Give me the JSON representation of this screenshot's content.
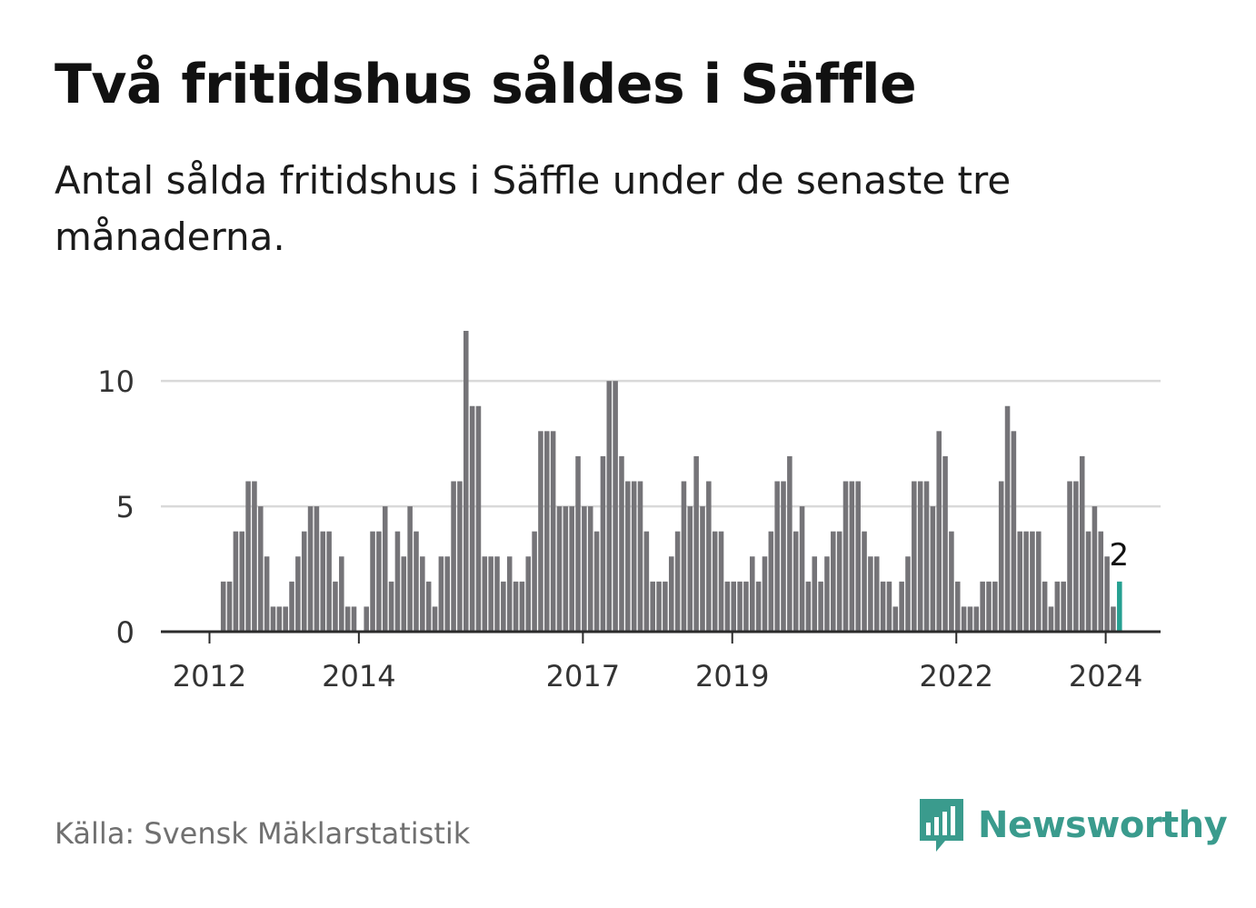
{
  "title": "Två fritidshus såldes i Säffle",
  "subtitle": "Antal sålda fritidshus i Säffle under de senaste tre månaderna.",
  "source": "Källa: Svensk Mäklarstatistik",
  "brand": {
    "name": "Newsworthy",
    "icon": "newsworthy-chart-bubble-icon"
  },
  "colors": {
    "bar": "#757478",
    "highlight": "#26a091",
    "grid": "#d9d9d9",
    "axis": "#2b2b2b",
    "brand": "#3a9b8d"
  },
  "chart_data": {
    "type": "bar",
    "title": "Antal sålda fritidshus i Säffle under de senaste tre månaderna.",
    "xlabel": "",
    "ylabel": "",
    "ylim": [
      0,
      12
    ],
    "yticks": [
      0,
      5,
      10
    ],
    "ytick_labels": [
      "0",
      "5",
      "10"
    ],
    "xticks": [
      {
        "label": "2012",
        "index": 0
      },
      {
        "label": "2014",
        "index": 24
      },
      {
        "label": "2017",
        "index": 60
      },
      {
        "label": "2019",
        "index": 84
      },
      {
        "label": "2022",
        "index": 120
      },
      {
        "label": "2024",
        "index": 144
      }
    ],
    "start": "2012-01",
    "values": [
      0,
      0,
      2,
      2,
      4,
      4,
      6,
      6,
      5,
      3,
      1,
      1,
      1,
      2,
      3,
      4,
      5,
      5,
      4,
      4,
      2,
      3,
      1,
      1,
      0,
      1,
      4,
      4,
      5,
      2,
      4,
      3,
      5,
      4,
      3,
      2,
      1,
      3,
      3,
      6,
      6,
      12,
      9,
      9,
      3,
      3,
      3,
      2,
      3,
      2,
      2,
      3,
      4,
      8,
      8,
      8,
      5,
      5,
      5,
      7,
      5,
      5,
      4,
      7,
      10,
      10,
      7,
      6,
      6,
      6,
      4,
      2,
      2,
      2,
      3,
      4,
      6,
      5,
      7,
      5,
      6,
      4,
      4,
      2,
      2,
      2,
      2,
      3,
      2,
      3,
      4,
      6,
      6,
      7,
      4,
      5,
      2,
      3,
      2,
      3,
      4,
      4,
      6,
      6,
      6,
      4,
      3,
      3,
      2,
      2,
      1,
      2,
      3,
      6,
      6,
      6,
      5,
      8,
      7,
      4,
      2,
      1,
      1,
      1,
      2,
      2,
      2,
      6,
      9,
      8,
      4,
      4,
      4,
      4,
      2,
      1,
      2,
      2,
      6,
      6,
      7,
      4,
      5,
      4,
      3,
      1,
      2
    ],
    "highlight_index": 146,
    "annotation": "2"
  }
}
